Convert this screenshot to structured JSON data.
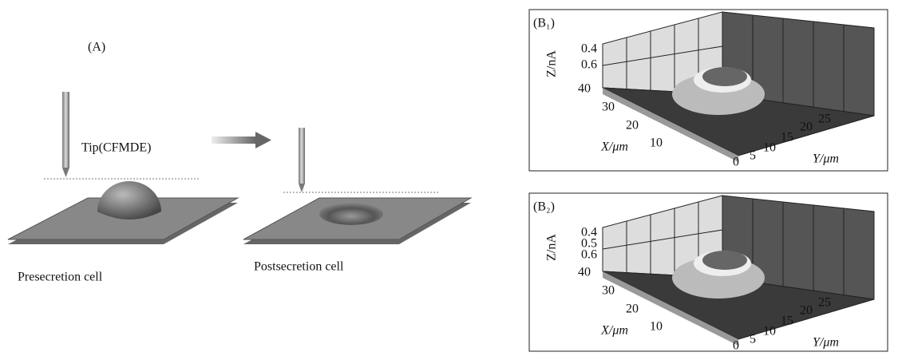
{
  "panel_a": {
    "label": "(A)",
    "tip": "Tip(CFMDE)",
    "cells": [
      "Presecretion cell",
      "Postsecretion cell"
    ]
  },
  "panel_b": [
    {
      "label": "(B₁)",
      "z_label": "Z/nA",
      "z_ticks": [
        "0.4",
        "0.6"
      ],
      "x_label": "X/μm",
      "x_ticks": [
        "40",
        "30",
        "20",
        "10",
        "0"
      ],
      "y_label": "Y/μm",
      "y_ticks": [
        "5",
        "10",
        "15",
        "20",
        "25"
      ]
    },
    {
      "label": "(B₂)",
      "z_label": "Z/nA",
      "z_ticks": [
        "0.4",
        "0.5",
        "0.6"
      ],
      "x_label": "X/μm",
      "x_ticks": [
        "40",
        "30",
        "20",
        "10",
        "0"
      ],
      "y_label": "Y/μm",
      "y_ticks": [
        "5",
        "10",
        "15",
        "20",
        "25"
      ]
    }
  ]
}
